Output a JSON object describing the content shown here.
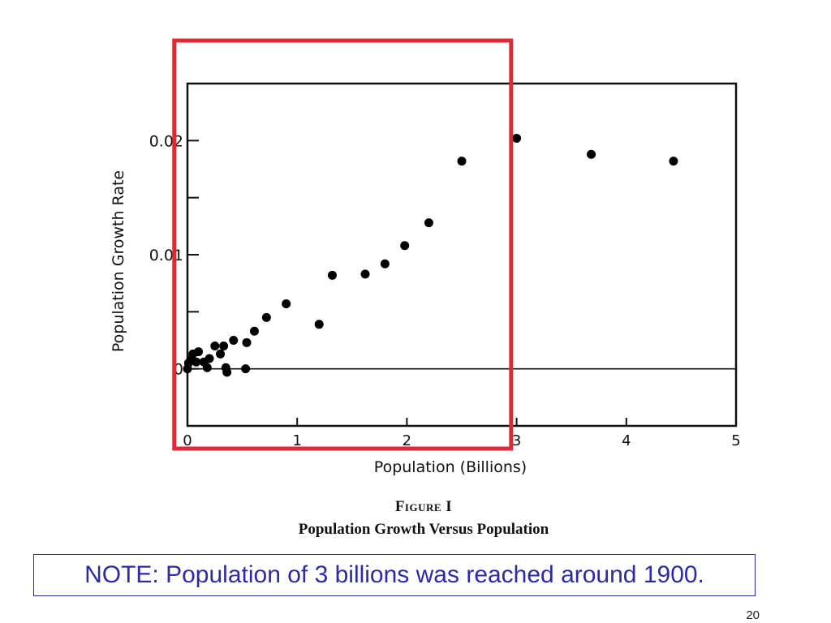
{
  "chart_data": {
    "type": "scatter",
    "xlabel": "Population (Billions)",
    "ylabel": "Population Growth Rate",
    "xlim": [
      0,
      5
    ],
    "ylim": [
      -0.005,
      0.025
    ],
    "x_ticks": [
      0,
      1,
      2,
      3,
      4,
      5
    ],
    "x_tick_labels": [
      "0",
      "1",
      "2",
      "3",
      "4",
      "5"
    ],
    "y_ticks": [
      0,
      0.01,
      0.02
    ],
    "y_tick_labels": [
      "0",
      "0.01",
      "0.02"
    ],
    "y_minor_ticks": [
      0.005,
      0.015
    ],
    "zero_line": true,
    "grid": false,
    "points": [
      {
        "x": 0.0,
        "y": 0.0
      },
      {
        "x": 0.01,
        "y": 0.0005
      },
      {
        "x": 0.03,
        "y": 0.0008
      },
      {
        "x": 0.05,
        "y": 0.0013
      },
      {
        "x": 0.08,
        "y": 0.0006
      },
      {
        "x": 0.1,
        "y": 0.0015
      },
      {
        "x": 0.15,
        "y": 0.0006
      },
      {
        "x": 0.18,
        "y": 0.0001
      },
      {
        "x": 0.2,
        "y": 0.0009
      },
      {
        "x": 0.25,
        "y": 0.002
      },
      {
        "x": 0.3,
        "y": 0.0013
      },
      {
        "x": 0.33,
        "y": 0.002
      },
      {
        "x": 0.35,
        "y": 0.0001
      },
      {
        "x": 0.36,
        "y": -0.0003
      },
      {
        "x": 0.42,
        "y": 0.0025
      },
      {
        "x": 0.53,
        "y": 0.0
      },
      {
        "x": 0.54,
        "y": 0.0023
      },
      {
        "x": 0.61,
        "y": 0.0033
      },
      {
        "x": 0.72,
        "y": 0.0045
      },
      {
        "x": 0.9,
        "y": 0.0057
      },
      {
        "x": 1.2,
        "y": 0.0039
      },
      {
        "x": 1.32,
        "y": 0.0082
      },
      {
        "x": 1.62,
        "y": 0.0083
      },
      {
        "x": 1.8,
        "y": 0.0092
      },
      {
        "x": 1.98,
        "y": 0.0108
      },
      {
        "x": 2.2,
        "y": 0.0128
      },
      {
        "x": 2.5,
        "y": 0.0182
      },
      {
        "x": 3.0,
        "y": 0.0202
      },
      {
        "x": 3.68,
        "y": 0.0188
      },
      {
        "x": 4.43,
        "y": 0.0182
      }
    ],
    "highlight_box": {
      "color": "#dd2a35",
      "x_range": [
        -0.12,
        2.95
      ]
    }
  },
  "figure": {
    "number": "Figure I",
    "caption": "Population Growth Versus Population"
  },
  "note": "NOTE: Population of 3 billions was reached around 1900.",
  "slide_number": "20"
}
